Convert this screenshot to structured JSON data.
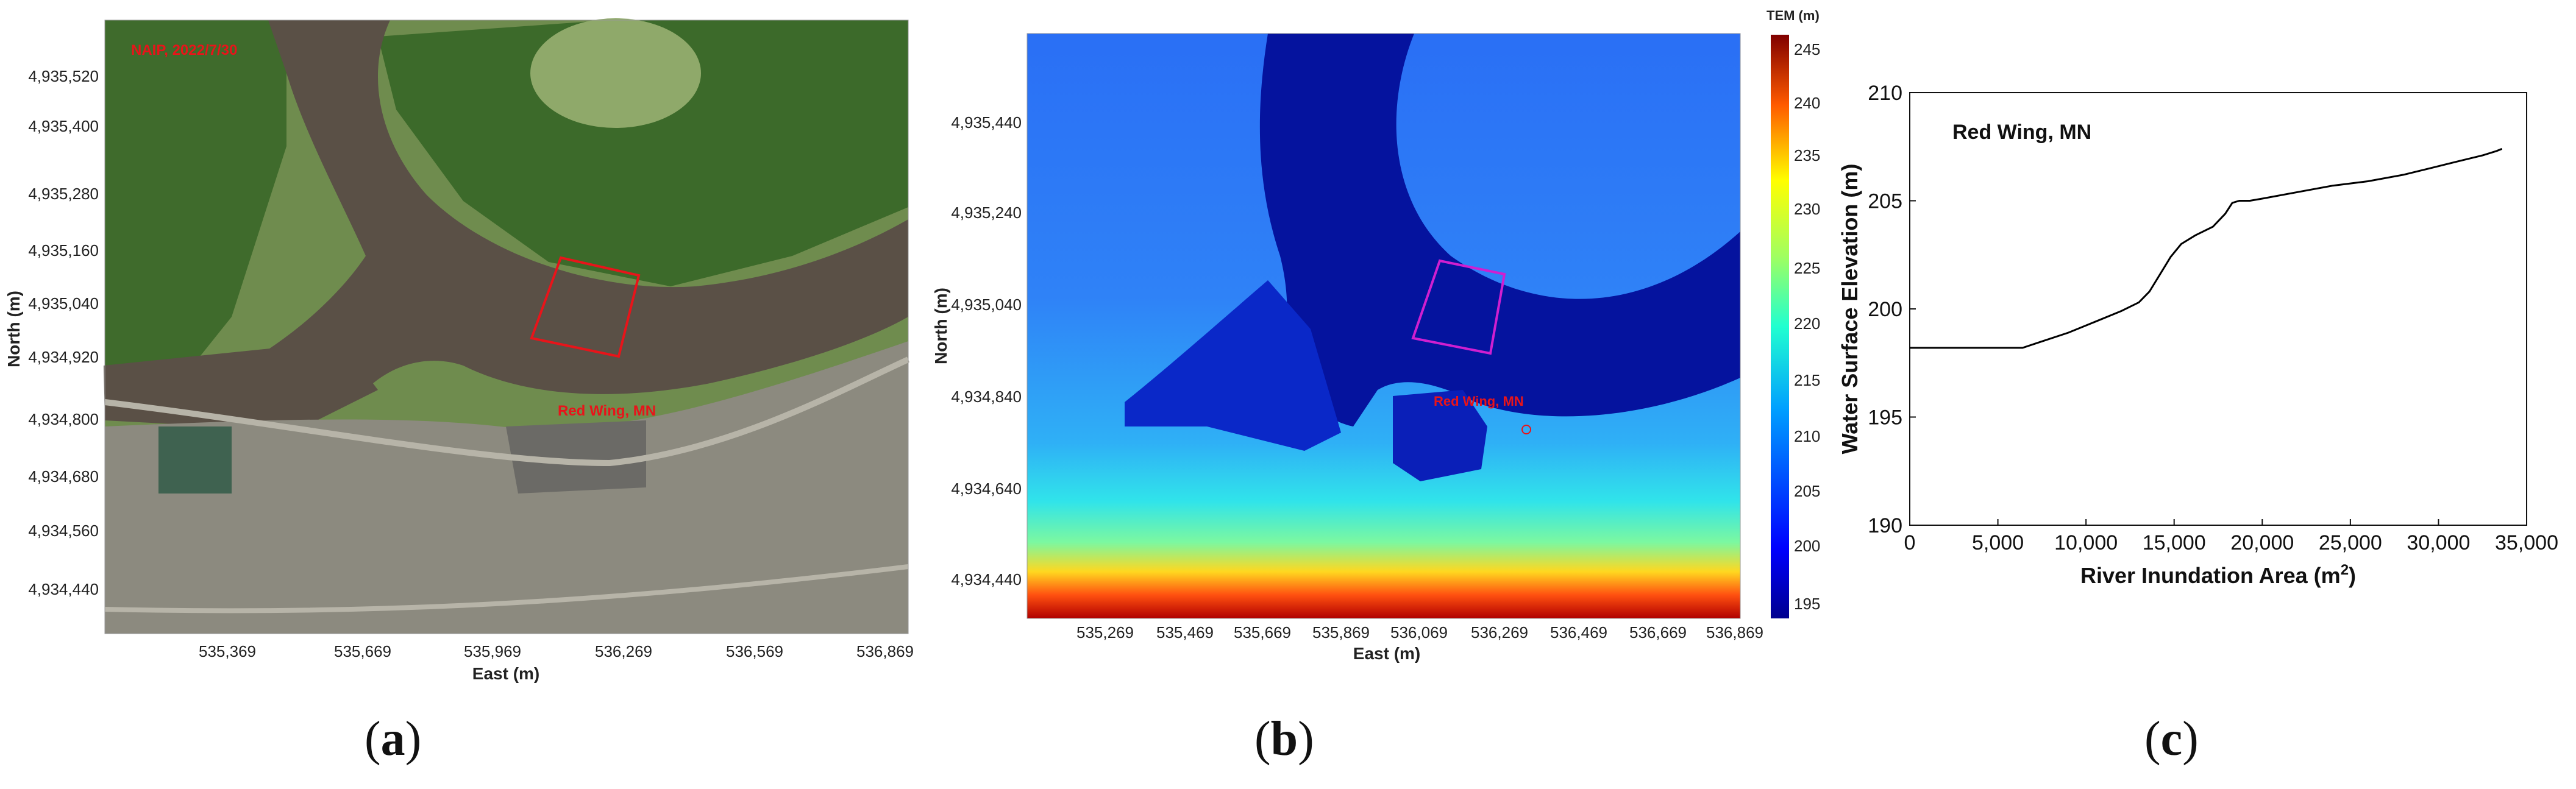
{
  "panel_labels": {
    "a_open": "(",
    "a": "a",
    "a_close": ")",
    "b_open": "(",
    "b": "b",
    "b_close": ")",
    "c_open": "(",
    "c": "c",
    "c_close": ")"
  },
  "panel_a": {
    "imagery_label": "NAIP, 2022/7/30",
    "place_label": "Red Wing, MN",
    "xlabel": "East (m)",
    "ylabel": "North (m)",
    "xticks": [
      "535,369",
      "535,669",
      "535,969",
      "536,269",
      "536,569",
      "536,869"
    ],
    "yticks": [
      "4,935,520",
      "4,935,400",
      "4,935,280",
      "4,935,160",
      "4,935,040",
      "4,934,920",
      "4,934,800",
      "4,934,680",
      "4,934,560",
      "4,934,440"
    ],
    "colors": {
      "box": "#e8141a",
      "label": "#e8141a"
    }
  },
  "panel_b": {
    "place_label": "Red Wing, MN",
    "xlabel": "East (m)",
    "ylabel": "North (m)",
    "xticks": [
      "535,269",
      "535,469",
      "535,669",
      "535,869",
      "536,069",
      "536,269",
      "536,469",
      "536,669",
      "536,869"
    ],
    "yticks": [
      "4,935,440",
      "4,935,240",
      "4,935,040",
      "4,934,840",
      "4,934,640",
      "4,934,440"
    ],
    "colorbar": {
      "title": "TEM (m)",
      "ticks": [
        "245",
        "240",
        "235",
        "230",
        "225",
        "220",
        "215",
        "210",
        "205",
        "200",
        "195"
      ]
    },
    "colors": {
      "box": "#d01fd0",
      "label": "#e8141a"
    }
  },
  "chart_data": {
    "type": "line",
    "title": "Red Wing,  MN",
    "xlabel_prefix": "River Inundation Area (m",
    "xlabel_sup": "2",
    "xlabel_suffix": ")",
    "ylabel": "Water Surface Elevation (m)",
    "xlim": [
      0,
      35000
    ],
    "ylim": [
      190,
      210
    ],
    "xticks": [
      0,
      5000,
      10000,
      15000,
      20000,
      25000,
      30000,
      35000
    ],
    "xtick_labels": [
      "0",
      "5,000",
      "10,000",
      "15,000",
      "20,000",
      "25,000",
      "30,000",
      "35,000"
    ],
    "yticks": [
      190,
      195,
      200,
      205,
      210
    ],
    "ytick_labels": [
      "190",
      "195",
      "200",
      "205",
      "210"
    ],
    "series": [
      {
        "x": [
          0,
          6400,
          7500,
          9000,
          10500,
          12000,
          13000,
          13600,
          14200,
          14800,
          15400,
          16200,
          17200,
          17900,
          18300,
          18700,
          19300,
          20000,
          22000,
          24000,
          26000,
          28000,
          29500,
          31000,
          32500,
          33300,
          33600
        ],
        "y": [
          198.2,
          198.2,
          198.5,
          198.9,
          199.4,
          199.9,
          200.3,
          200.8,
          201.6,
          202.4,
          203.0,
          203.4,
          203.8,
          204.4,
          204.9,
          205.0,
          205.0,
          205.1,
          205.4,
          205.7,
          205.9,
          206.2,
          206.5,
          206.8,
          207.1,
          207.3,
          207.4
        ]
      }
    ]
  }
}
